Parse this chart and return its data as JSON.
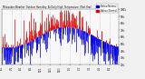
{
  "title": "Milwaukee Weather  Outdoor Humidity  At Daily High  Temperature  (Past Year)",
  "background_color": "#f0f0f0",
  "plot_bg_color": "#f8f8f8",
  "grid_color": "#aaaaaa",
  "ylim": [
    20,
    100
  ],
  "num_points": 365,
  "legend_blue": "Below Normal",
  "legend_red": "Above Normal",
  "blue_color": "#0000dd",
  "red_color": "#dd0000",
  "seed": 17
}
